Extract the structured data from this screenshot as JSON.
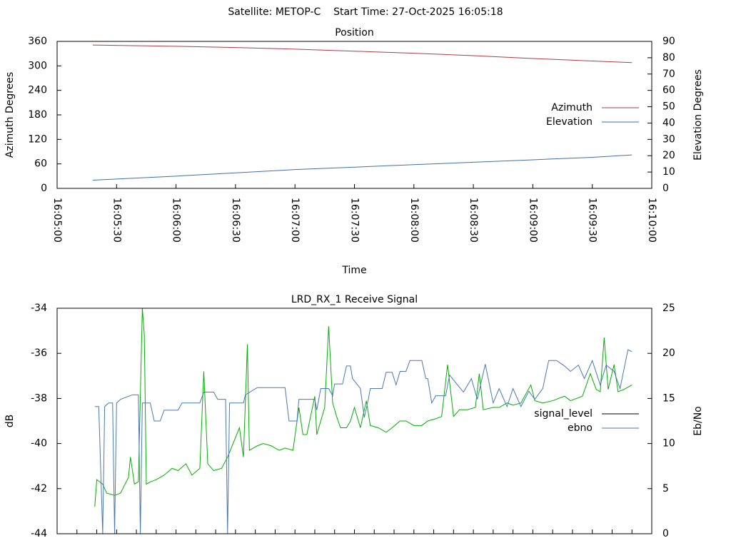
{
  "title": "Satellite: METOP-C    Start Time: 27-Oct-2025 16:05:18",
  "chart_data": [
    {
      "type": "line",
      "title": "Position",
      "xlabel": "Time",
      "ylabel": "Azimuth Degrees",
      "y2label": "Elevation Degrees",
      "xlim": [
        "16:05:00",
        "16:10:00"
      ],
      "xticks": [
        "16:05:00",
        "16:05:30",
        "16:06:00",
        "16:06:30",
        "16:07:00",
        "16:07:30",
        "16:08:00",
        "16:08:30",
        "16:09:00",
        "16:09:30",
        "16:10:00"
      ],
      "xtick_labels": true,
      "ylim": [
        0,
        360
      ],
      "yticks": [
        0,
        60,
        120,
        180,
        240,
        300,
        360
      ],
      "y2lim": [
        0,
        90
      ],
      "y2ticks": [
        0,
        10,
        20,
        30,
        40,
        50,
        60,
        70,
        80,
        90
      ],
      "legend": "right",
      "grid": false,
      "series": [
        {
          "name": "Azimuth",
          "color": "#b03a48",
          "axis": "y",
          "x": [
            "16:05:18",
            "16:06:00",
            "16:06:30",
            "16:07:00",
            "16:07:30",
            "16:08:00",
            "16:08:30",
            "16:09:00",
            "16:09:30",
            "16:09:50"
          ],
          "values": [
            351,
            348,
            345,
            341,
            336,
            331,
            325,
            318,
            312,
            308
          ]
        },
        {
          "name": "Elevation",
          "color": "#3d70a8",
          "axis": "y2",
          "x": [
            "16:05:18",
            "16:06:00",
            "16:06:30",
            "16:07:00",
            "16:07:30",
            "16:08:00",
            "16:08:30",
            "16:09:00",
            "16:09:30",
            "16:09:50"
          ],
          "values": [
            5,
            7.5,
            9.5,
            11.5,
            13,
            14.5,
            16,
            17.5,
            19,
            20.5
          ]
        }
      ]
    },
    {
      "type": "line",
      "title": "LRD_RX_1 Receive Signal",
      "ylabel": "dB",
      "y2label": "Eb/No",
      "xlim": [
        "16:05:00",
        "16:10:00"
      ],
      "xticks": [
        "16:05:00",
        "16:05:10",
        "16:05:20",
        "16:05:30",
        "16:05:40",
        "16:05:50",
        "16:06:00",
        "16:06:10",
        "16:06:20",
        "16:06:30",
        "16:06:40",
        "16:06:50",
        "16:07:00",
        "16:07:10",
        "16:07:20",
        "16:07:30",
        "16:07:40",
        "16:07:50",
        "16:08:00",
        "16:08:10",
        "16:08:20",
        "16:08:30",
        "16:08:40",
        "16:08:50",
        "16:09:00",
        "16:09:10",
        "16:09:20",
        "16:09:30",
        "16:09:40",
        "16:09:50",
        "16:10:00"
      ],
      "xtick_labels": false,
      "ylim": [
        -44,
        -34
      ],
      "yticks": [
        -44,
        -42,
        -40,
        -38,
        -36,
        -34
      ],
      "y2lim": [
        0,
        25
      ],
      "y2ticks": [
        0,
        5,
        10,
        15,
        20,
        25
      ],
      "legend": "right",
      "grid": false,
      "series": [
        {
          "name": "signal_level",
          "color": "#00b000",
          "legend_color": "#000000",
          "axis": "y",
          "x": [
            "16:05:19",
            "16:05:20",
            "16:05:23",
            "16:05:25",
            "16:05:29",
            "16:05:32",
            "16:05:36",
            "16:05:37",
            "16:05:39",
            "16:05:41",
            "16:05:43",
            "16:05:44",
            "16:05:45",
            "16:05:47",
            "16:05:50",
            "16:05:54",
            "16:05:58",
            "16:06:01",
            "16:06:05",
            "16:06:08",
            "16:06:12",
            "16:06:14",
            "16:06:16",
            "16:06:19",
            "16:06:23",
            "16:06:26",
            "16:06:32",
            "16:06:34",
            "16:06:36",
            "16:06:37",
            "16:06:41",
            "16:06:44",
            "16:06:48",
            "16:06:52",
            "16:06:55",
            "16:06:59",
            "16:07:02",
            "16:07:04",
            "16:07:06",
            "16:07:10",
            "16:07:11",
            "16:07:13",
            "16:07:15",
            "16:07:17",
            "16:07:19",
            "16:07:21",
            "16:07:23",
            "16:07:26",
            "16:07:28",
            "16:07:30",
            "16:07:33",
            "16:07:36",
            "16:07:38",
            "16:07:42",
            "16:07:46",
            "16:07:49",
            "16:07:53",
            "16:07:56",
            "16:08:00",
            "16:08:04",
            "16:08:07",
            "16:08:11",
            "16:08:14",
            "16:08:17",
            "16:08:20",
            "16:08:23",
            "16:08:27",
            "16:08:31",
            "16:08:33",
            "16:08:35",
            "16:08:40",
            "16:08:43",
            "16:08:47",
            "16:08:50",
            "16:08:54",
            "16:08:59",
            "16:09:01",
            "16:09:05",
            "16:09:10",
            "16:09:16",
            "16:09:19",
            "16:09:25",
            "16:09:29",
            "16:09:32",
            "16:09:34",
            "16:09:36",
            "16:09:38",
            "16:09:41",
            "16:09:43",
            "16:09:46",
            "16:09:50"
          ],
          "values": [
            -42.8,
            -41.6,
            -41.8,
            -42.2,
            -42.3,
            -42.2,
            -41.5,
            -40.6,
            -41.8,
            -41.7,
            -34,
            -35.2,
            -41.8,
            -41.7,
            -41.6,
            -41.4,
            -41.1,
            -41.2,
            -40.9,
            -41.4,
            -41.1,
            -36.8,
            -40.9,
            -41.2,
            -41.1,
            -40.6,
            -39.3,
            -40.6,
            -35.6,
            -40.3,
            -40.1,
            -40.0,
            -40.1,
            -40.3,
            -40.2,
            -40.3,
            -38.4,
            -39.6,
            -39.6,
            -37.9,
            -39.6,
            -39.0,
            -38.4,
            -34.8,
            -38.2,
            -38.8,
            -39.3,
            -39.3,
            -39.0,
            -38.4,
            -39.3,
            -38.1,
            -39.2,
            -39.3,
            -39.5,
            -39.3,
            -39.0,
            -39.0,
            -39.2,
            -39.2,
            -39.0,
            -38.9,
            -38.8,
            -36.5,
            -38.8,
            -38.5,
            -38.5,
            -38.4,
            -36.9,
            -38.5,
            -38.4,
            -38.4,
            -38.2,
            -38.3,
            -38.2,
            -37.4,
            -38.1,
            -38.2,
            -38.1,
            -37.9,
            -38.1,
            -37.9,
            -36.9,
            -37.6,
            -37.7,
            -35.3,
            -37.6,
            -36.5,
            -37.7,
            -37.6,
            -37.4
          ]
        },
        {
          "name": "ebno",
          "color": "#4a78b4",
          "axis": "y2",
          "x": [
            "16:05:19",
            "16:05:21",
            "16:05:23",
            "16:05:24",
            "16:05:26",
            "16:05:28",
            "16:05:29",
            "16:05:30",
            "16:05:32",
            "16:05:38",
            "16:05:41",
            "16:05:42",
            "16:05:43",
            "16:05:47",
            "16:05:49",
            "16:05:52",
            "16:05:54",
            "16:06:01",
            "16:06:03",
            "16:06:12",
            "16:06:14",
            "16:06:19",
            "16:06:21",
            "16:06:25",
            "16:06:26",
            "16:06:27",
            "16:06:34",
            "16:06:35",
            "16:06:41",
            "16:06:55",
            "16:06:57",
            "16:07:01",
            "16:07:02",
            "16:07:10",
            "16:07:11",
            "16:07:13",
            "16:07:17",
            "16:07:19",
            "16:07:20",
            "16:07:24",
            "16:07:26",
            "16:07:28",
            "16:07:29",
            "16:07:33",
            "16:07:35",
            "16:07:37",
            "16:07:38",
            "16:07:44",
            "16:07:46",
            "16:07:49",
            "16:07:51",
            "16:07:53",
            "16:07:56",
            "16:07:58",
            "16:08:04",
            "16:08:06",
            "16:08:07",
            "16:08:09",
            "16:08:11",
            "16:08:16",
            "16:08:18",
            "16:08:22",
            "16:08:25",
            "16:08:29",
            "16:08:32",
            "16:08:36",
            "16:08:40",
            "16:08:43",
            "16:08:47",
            "16:08:50",
            "16:08:54",
            "16:08:58",
            "16:09:01",
            "16:09:05",
            "16:09:08",
            "16:09:12",
            "16:09:16",
            "16:09:19",
            "16:09:23",
            "16:09:26",
            "16:09:30",
            "16:09:34",
            "16:09:37",
            "16:09:41",
            "16:09:44",
            "16:09:48",
            "16:09:50"
          ],
          "values": [
            14.1,
            14.1,
            0,
            14.1,
            14.5,
            14.5,
            0,
            14.5,
            14.9,
            15.4,
            15.4,
            0,
            14.5,
            14.5,
            12.5,
            12.5,
            13.7,
            13.7,
            14.5,
            14.5,
            15.7,
            15.7,
            14.9,
            14.9,
            0,
            14.5,
            14.5,
            15.4,
            16.2,
            16.2,
            12.5,
            12.5,
            14.9,
            14.9,
            13.7,
            16.1,
            16.1,
            15.3,
            16.6,
            16.6,
            18.6,
            18.6,
            17.2,
            16.1,
            12.9,
            14.9,
            16.1,
            16.1,
            17.9,
            17.9,
            16.5,
            18.0,
            18.0,
            19.2,
            19.2,
            17.2,
            17.2,
            14.5,
            15.3,
            15.3,
            17.6,
            16.5,
            15.7,
            17.2,
            14.9,
            18.8,
            14.5,
            16.1,
            14.1,
            16.1,
            14.1,
            15.8,
            14.9,
            16.1,
            19.2,
            19.2,
            18.6,
            18.0,
            18.7,
            17.2,
            19.2,
            16.5,
            18.7,
            18.0,
            16.1,
            20.4,
            20.2
          ]
        }
      ]
    }
  ]
}
